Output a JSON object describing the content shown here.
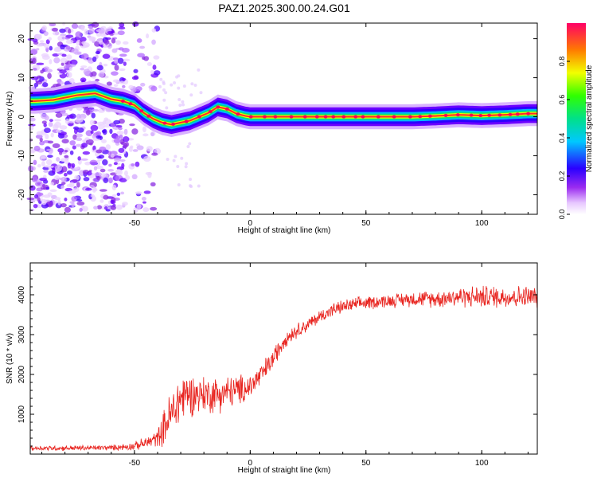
{
  "title": "PAZ1.2025.300.00.24.G01",
  "chart_data": [
    {
      "type": "heatmap",
      "title": "PAZ1.2025.300.00.24.G01",
      "xlabel": "Height of straight line (km)",
      "ylabel": "Frequency (Hz)",
      "xlim": [
        -95,
        124
      ],
      "ylim": [
        -25,
        24
      ],
      "x_ticks": [
        -50,
        0,
        50,
        100
      ],
      "x_tick_labels": [
        "-50",
        "0",
        "50",
        "100"
      ],
      "y_ticks": [
        -20,
        -10,
        0,
        10,
        20
      ],
      "y_tick_labels": [
        "-20",
        "-10",
        "0",
        "10",
        "20"
      ],
      "colorbar": {
        "label": "Normalized spectral amplitude",
        "range": [
          0,
          1
        ],
        "ticks": [
          0.0,
          0.2,
          0.4,
          0.6,
          0.8
        ],
        "tick_labels": [
          "0.0",
          "0.2",
          "0.4",
          "0.6",
          "0.8"
        ]
      },
      "ridge": {
        "x": [
          -93,
          -85,
          -75,
          -67,
          -60,
          -55,
          -50,
          -46,
          -42,
          -38,
          -34,
          -30,
          -26,
          -22,
          -18,
          -14,
          -10,
          -6,
          -2,
          0,
          10,
          20,
          30,
          36,
          40,
          50,
          60,
          70,
          80,
          90,
          100,
          110,
          120,
          124
        ],
        "y": [
          4.0,
          4.3,
          5.5,
          6.0,
          4.5,
          4.0,
          3.0,
          1.0,
          -0.5,
          -1.5,
          -2.0,
          -1.5,
          -1.0,
          0.0,
          1.0,
          2.5,
          2.0,
          0.8,
          0.2,
          0.0,
          0.0,
          0.0,
          0.0,
          0.0,
          0.0,
          0.0,
          0.0,
          0.0,
          0.2,
          0.5,
          0.3,
          0.5,
          0.8,
          0.8
        ]
      },
      "grid": false,
      "legend": "none"
    },
    {
      "type": "line",
      "xlabel": "Height of straight line (km)",
      "ylabel": "SNR (10 * v/v)",
      "xlim": [
        -95,
        124
      ],
      "ylim": [
        0,
        4800
      ],
      "x_ticks": [
        -50,
        0,
        50,
        100
      ],
      "x_tick_labels": [
        "-50",
        "0",
        "50",
        "100"
      ],
      "y_ticks": [
        1000,
        2000,
        3000,
        4000
      ],
      "y_tick_labels": [
        "1000",
        "2000",
        "3000",
        "4000"
      ],
      "color": "#e8241f",
      "envelope": {
        "x": [
          -95,
          -80,
          -60,
          -50,
          -45,
          -40,
          -38,
          -35,
          -32,
          -30,
          -28,
          -25,
          -20,
          -15,
          -10,
          -5,
          0,
          5,
          10,
          15,
          20,
          25,
          30,
          35,
          40,
          50,
          60,
          70,
          80,
          90,
          100,
          110,
          120,
          124
        ],
        "mean": [
          150,
          150,
          160,
          200,
          280,
          400,
          600,
          900,
          1200,
          1400,
          1500,
          1500,
          1500,
          1500,
          1550,
          1600,
          1700,
          2000,
          2400,
          2900,
          3100,
          3250,
          3450,
          3600,
          3700,
          3800,
          3850,
          3900,
          3900,
          3950,
          3950,
          3950,
          3950,
          3950
        ],
        "spread": [
          70,
          80,
          80,
          120,
          180,
          250,
          450,
          700,
          800,
          800,
          700,
          600,
          550,
          550,
          500,
          450,
          400,
          350,
          300,
          250,
          220,
          200,
          200,
          200,
          200,
          200,
          200,
          220,
          250,
          300,
          330,
          330,
          330,
          330
        ]
      },
      "grid": false,
      "legend": "none"
    }
  ]
}
